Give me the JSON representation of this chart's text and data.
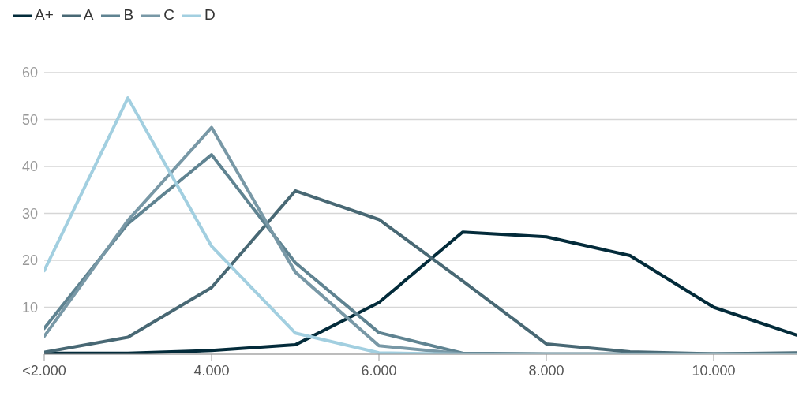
{
  "chart_data": {
    "type": "line",
    "categories": [
      "<2.000",
      null,
      "4.000",
      null,
      "6.000",
      null,
      "8.000",
      null,
      "10.000",
      null
    ],
    "series": [
      {
        "name": "A+",
        "color": "#032b3a",
        "values": [
          0.2,
          0.2,
          0.8,
          2,
          11,
          26,
          25,
          21,
          10,
          4
        ]
      },
      {
        "name": "A",
        "color": "#486874",
        "values": [
          0.4,
          3.6,
          14.2,
          34.8,
          28.7,
          15.6,
          2.2,
          0.5,
          0.1,
          0.3
        ]
      },
      {
        "name": "B",
        "color": "#5f8391",
        "values": [
          5.5,
          27.8,
          42.5,
          19.5,
          4.6,
          0.2,
          0.1,
          0.1,
          0.1,
          0.1
        ]
      },
      {
        "name": "C",
        "color": "#7898a6",
        "values": [
          3.8,
          28.5,
          48.3,
          17.5,
          1.8,
          0.1,
          0,
          0,
          0,
          0
        ]
      },
      {
        "name": "D",
        "color": "#a2cfe0",
        "values": [
          17.8,
          54.6,
          23,
          4.5,
          0.3,
          0,
          0,
          0,
          0,
          0
        ]
      }
    ],
    "ylim": [
      0,
      60
    ],
    "yticks": [
      {
        "value": 0,
        "label": null
      },
      10,
      20,
      30,
      40,
      50,
      60
    ],
    "grid": "y",
    "legend": "top left",
    "marker": "none",
    "line_style": "solid"
  }
}
